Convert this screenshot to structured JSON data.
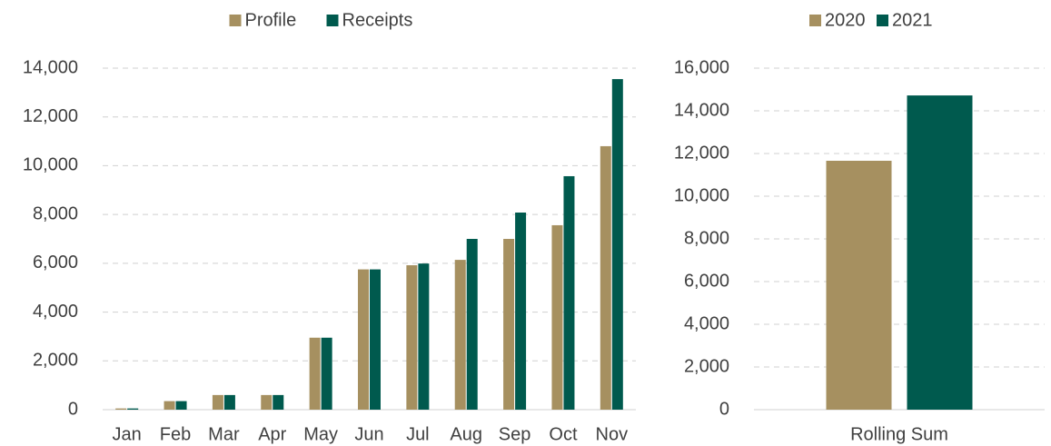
{
  "chart_data": [
    {
      "type": "bar",
      "categories": [
        "Jan",
        "Feb",
        "Mar",
        "Apr",
        "May",
        "Jun",
        "Jul",
        "Aug",
        "Sep",
        "Oct",
        "Nov"
      ],
      "series": [
        {
          "name": "Profile",
          "color": "#a69060",
          "values": [
            50,
            350,
            600,
            600,
            2950,
            5750,
            5920,
            6140,
            7000,
            7560,
            10800
          ]
        },
        {
          "name": "Receipts",
          "color": "#005a4e",
          "values": [
            50,
            350,
            600,
            600,
            2950,
            5750,
            5990,
            7000,
            8080,
            9570,
            13550
          ]
        }
      ],
      "ylim": [
        0,
        14000
      ],
      "yticks": [
        0,
        {
          "value": 2000,
          "label": "2,000"
        },
        {
          "value": 4000,
          "label": "4,000"
        },
        {
          "value": 6000,
          "label": "6,000"
        },
        {
          "value": 8000,
          "label": "8,000"
        },
        {
          "value": 10000,
          "label": "10,000"
        },
        {
          "value": 12000,
          "label": "12,000"
        },
        {
          "value": 14000,
          "label": "14,000"
        }
      ],
      "grid": true,
      "legend": "top"
    },
    {
      "type": "bar",
      "categories": [
        "Rolling Sum"
      ],
      "series": [
        {
          "name": "2020",
          "color": "#a69060",
          "values": [
            11660
          ]
        },
        {
          "name": "2021",
          "color": "#005a4e",
          "values": [
            14720
          ]
        }
      ],
      "ylim": [
        0,
        16000
      ],
      "yticks": [
        0,
        {
          "value": 2000,
          "label": "2,000"
        },
        {
          "value": 4000,
          "label": "4,000"
        },
        {
          "value": 6000,
          "label": "6,000"
        },
        {
          "value": 8000,
          "label": "8,000"
        },
        {
          "value": 10000,
          "label": "10,000"
        },
        {
          "value": 12000,
          "label": "12,000"
        },
        {
          "value": 14000,
          "label": "14,000"
        },
        {
          "value": 16000,
          "label": "16,000"
        }
      ],
      "grid": true,
      "legend": "top"
    }
  ]
}
